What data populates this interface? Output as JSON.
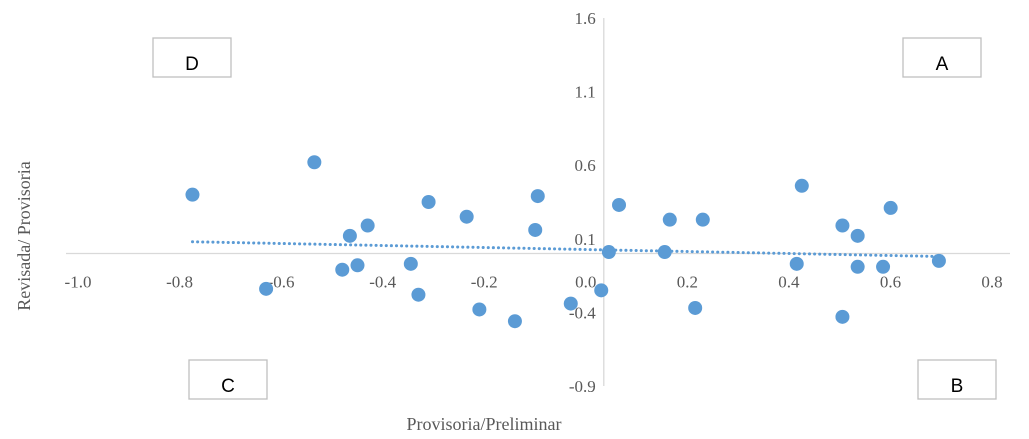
{
  "chart_data": {
    "type": "scatter",
    "xlabel": "Provisoria/Preliminar",
    "ylabel": "Revisada/ Provisoria",
    "xlim": [
      -1.0,
      0.8
    ],
    "ylim": [
      -0.9,
      1.6
    ],
    "x_ticks": [
      "-1.0",
      "-0.8",
      "-0.6",
      "-0.4",
      "-0.2",
      "0.0",
      "0.2",
      "0.4",
      "0.6",
      "0.8"
    ],
    "y_ticks": [
      "1.6",
      "1.1",
      "0.6",
      "0.1",
      "-0.4",
      "-0.9"
    ],
    "grid": false,
    "legend": "none",
    "colors": {
      "point": "#5b9bd5",
      "trend": "#5b9bd5",
      "axis": "#d9d9d9",
      "text": "#595959"
    },
    "series": [
      {
        "points": [
          {
            "x": -0.81,
            "y": 0.4
          },
          {
            "x": -0.665,
            "y": -0.24
          },
          {
            "x": -0.57,
            "y": 0.62
          },
          {
            "x": -0.515,
            "y": -0.11
          },
          {
            "x": -0.5,
            "y": 0.12
          },
          {
            "x": -0.485,
            "y": -0.08
          },
          {
            "x": -0.465,
            "y": 0.19
          },
          {
            "x": -0.38,
            "y": -0.07
          },
          {
            "x": -0.365,
            "y": -0.28
          },
          {
            "x": -0.345,
            "y": 0.35
          },
          {
            "x": -0.27,
            "y": 0.25
          },
          {
            "x": -0.245,
            "y": -0.38
          },
          {
            "x": -0.175,
            "y": -0.46
          },
          {
            "x": -0.135,
            "y": 0.16
          },
          {
            "x": -0.13,
            "y": 0.39
          },
          {
            "x": -0.065,
            "y": -0.34
          },
          {
            "x": -0.005,
            "y": -0.25
          },
          {
            "x": 0.01,
            "y": 0.01
          },
          {
            "x": 0.03,
            "y": 0.33
          },
          {
            "x": 0.12,
            "y": 0.01
          },
          {
            "x": 0.13,
            "y": 0.23
          },
          {
            "x": 0.18,
            "y": -0.37
          },
          {
            "x": 0.195,
            "y": 0.23
          },
          {
            "x": 0.38,
            "y": -0.07
          },
          {
            "x": 0.39,
            "y": 0.46
          },
          {
            "x": 0.47,
            "y": 0.19
          },
          {
            "x": 0.47,
            "y": -0.43
          },
          {
            "x": 0.5,
            "y": 0.12
          },
          {
            "x": 0.5,
            "y": -0.09
          },
          {
            "x": 0.55,
            "y": -0.09
          },
          {
            "x": 0.565,
            "y": 0.31
          },
          {
            "x": 0.66,
            "y": -0.05
          }
        ]
      }
    ],
    "trendline": {
      "style": "dotted",
      "from": {
        "x": -0.81,
        "y": 0.08
      },
      "to": {
        "x": 0.66,
        "y": -0.02
      }
    },
    "annotations": {
      "A": "A",
      "B": "B",
      "C": "C",
      "D": "D"
    }
  }
}
